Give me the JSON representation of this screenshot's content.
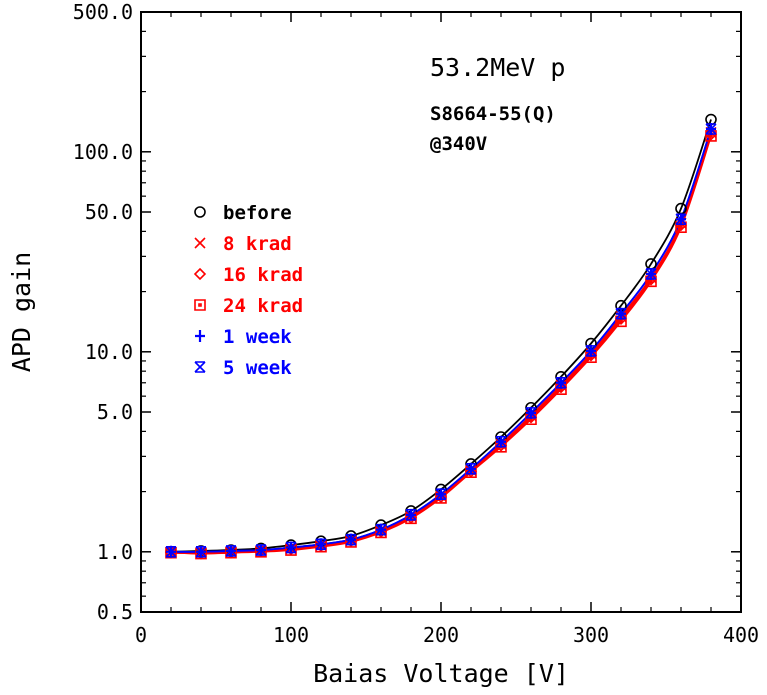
{
  "chart_data": {
    "type": "scatter",
    "title": "",
    "xlabel": "Baias Voltage [V]",
    "ylabel": "APD gain",
    "xlim": [
      0,
      400
    ],
    "ylim": [
      0.5,
      500
    ],
    "yscale": "log",
    "x_ticks": [
      0,
      100,
      200,
      300,
      400
    ],
    "y_ticks": [
      {
        "value": 0.5,
        "label": "0.5"
      },
      {
        "value": 1.0,
        "label": "1.0"
      },
      {
        "value": 5.0,
        "label": "5.0"
      },
      {
        "value": 10.0,
        "label": "10.0"
      },
      {
        "value": 50.0,
        "label": "50.0"
      },
      {
        "value": 100.0,
        "label": "100.0"
      },
      {
        "value": 500.0,
        "label": "500.0"
      }
    ],
    "annotations": [
      "53.2MeV p",
      "S8664-55(Q)",
      "@340V"
    ],
    "legend_position": "left-center",
    "grid": false,
    "x": [
      20,
      40,
      60,
      80,
      100,
      120,
      140,
      160,
      180,
      200,
      220,
      240,
      260,
      280,
      300,
      320,
      340,
      360,
      380
    ],
    "series": [
      {
        "name": "before",
        "color": "#000000",
        "marker": "circle",
        "values": [
          1.0,
          1.01,
          1.02,
          1.04,
          1.08,
          1.13,
          1.2,
          1.36,
          1.6,
          2.05,
          2.75,
          3.75,
          5.25,
          7.5,
          11.0,
          17.0,
          27.5,
          52.0,
          145.0
        ]
      },
      {
        "name": "8 krad",
        "color": "#ff0000",
        "marker": "x",
        "values": [
          0.99,
          0.99,
          1.0,
          1.02,
          1.04,
          1.08,
          1.14,
          1.27,
          1.5,
          1.9,
          2.55,
          3.45,
          4.8,
          6.8,
          9.8,
          15.0,
          23.5,
          44.0,
          125.0
        ]
      },
      {
        "name": "16 krad",
        "color": "#ff0000",
        "marker": "diamond",
        "values": [
          0.99,
          0.98,
          0.99,
          1.01,
          1.03,
          1.07,
          1.13,
          1.26,
          1.48,
          1.88,
          2.52,
          3.4,
          4.7,
          6.65,
          9.6,
          14.6,
          23.0,
          43.0,
          122.0
        ]
      },
      {
        "name": "24 krad",
        "color": "#ff0000",
        "marker": "square",
        "values": [
          0.99,
          0.98,
          0.99,
          1.0,
          1.02,
          1.06,
          1.12,
          1.25,
          1.47,
          1.86,
          2.5,
          3.35,
          4.6,
          6.5,
          9.4,
          14.2,
          22.5,
          42.0,
          120.0
        ]
      },
      {
        "name": "1 week",
        "color": "#0000ff",
        "marker": "plus",
        "values": [
          1.0,
          1.0,
          1.01,
          1.02,
          1.05,
          1.09,
          1.15,
          1.29,
          1.53,
          1.94,
          2.6,
          3.55,
          4.95,
          7.0,
          10.1,
          15.5,
          24.5,
          46.0,
          130.0
        ]
      },
      {
        "name": "5 week",
        "color": "#0000ff",
        "marker": "xsquare",
        "values": [
          1.0,
          1.0,
          1.01,
          1.02,
          1.05,
          1.09,
          1.15,
          1.29,
          1.53,
          1.94,
          2.6,
          3.55,
          4.95,
          7.0,
          10.1,
          15.5,
          24.5,
          46.0,
          130.0
        ]
      }
    ]
  }
}
